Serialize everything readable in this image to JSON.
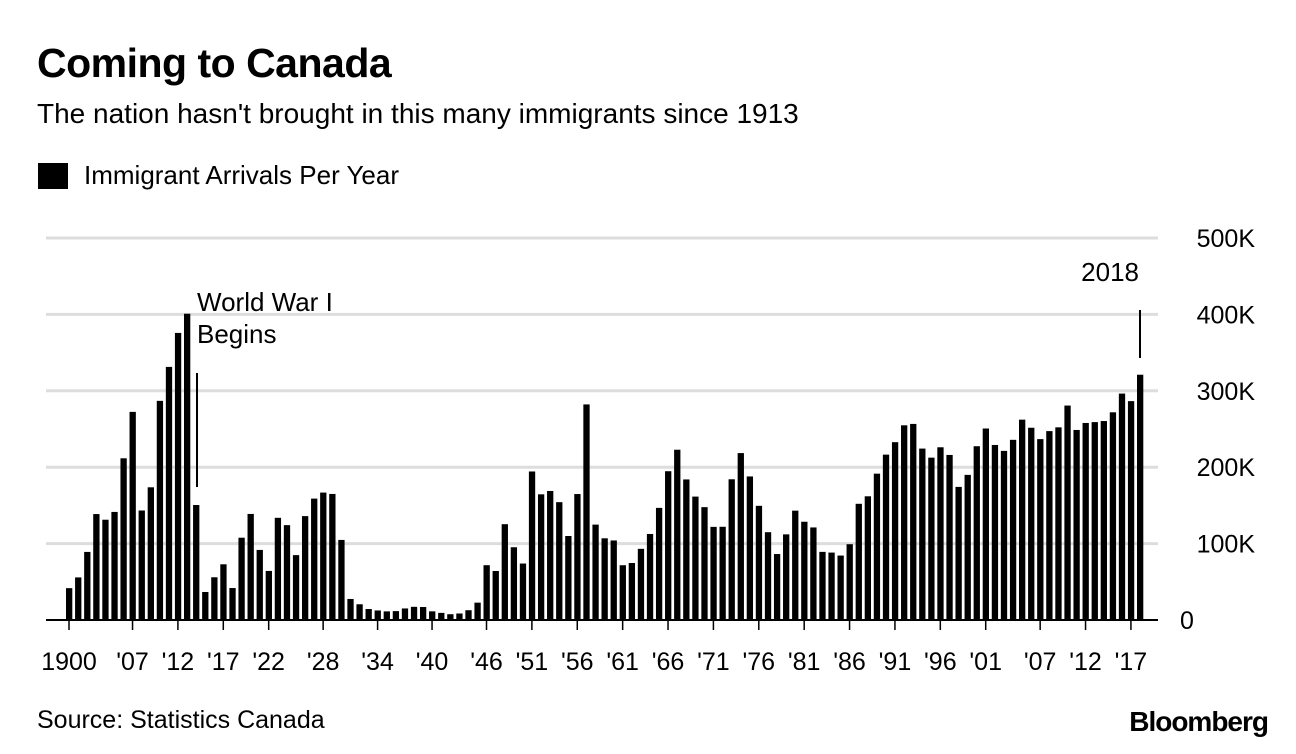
{
  "title": "Coming to Canada",
  "subtitle": "The nation hasn't brought in this many immigrants since 1913",
  "source": "Source: Statistics Canada",
  "logo": "Bloomberg",
  "chart_data": {
    "type": "bar",
    "legend": {
      "entries": [
        "Immigrant Arrivals Per Year"
      ],
      "placement": "top-left"
    },
    "color": "#000000",
    "grid": true,
    "grid_color": "#dddddd",
    "ylim": [
      0,
      500000
    ],
    "y_ticks": [
      {
        "value": 0,
        "label": "0"
      },
      {
        "value": 100000,
        "label": "100K"
      },
      {
        "value": 200000,
        "label": "200K"
      },
      {
        "value": 300000,
        "label": "300K"
      },
      {
        "value": 400000,
        "label": "400K"
      },
      {
        "value": 500000,
        "label": "500K"
      }
    ],
    "x_ticks": [
      {
        "year": 1900,
        "label": "1900"
      },
      {
        "year": 1907,
        "label": "'07"
      },
      {
        "year": 1912,
        "label": "'12"
      },
      {
        "year": 1917,
        "label": "'17"
      },
      {
        "year": 1922,
        "label": "'22"
      },
      {
        "year": 1928,
        "label": "'28"
      },
      {
        "year": 1934,
        "label": "'34"
      },
      {
        "year": 1940,
        "label": "'40"
      },
      {
        "year": 1946,
        "label": "'46"
      },
      {
        "year": 1951,
        "label": "'51"
      },
      {
        "year": 1956,
        "label": "'56"
      },
      {
        "year": 1961,
        "label": "'61"
      },
      {
        "year": 1966,
        "label": "'66"
      },
      {
        "year": 1971,
        "label": "'71"
      },
      {
        "year": 1976,
        "label": "'76"
      },
      {
        "year": 1981,
        "label": "'81"
      },
      {
        "year": 1986,
        "label": "'86"
      },
      {
        "year": 1991,
        "label": "'91"
      },
      {
        "year": 1996,
        "label": "'96"
      },
      {
        "year": 2001,
        "label": "'01"
      },
      {
        "year": 2007,
        "label": "'07"
      },
      {
        "year": 2012,
        "label": "'12"
      },
      {
        "year": 2017,
        "label": "'17"
      }
    ],
    "annotations": [
      {
        "year": 1914,
        "lines": [
          "World War I",
          "Begins"
        ]
      },
      {
        "year": 2018,
        "lines": [
          "2018"
        ]
      }
    ],
    "start_year": 1900,
    "values": [
      41681,
      55747,
      89102,
      138660,
      131252,
      141465,
      211653,
      272409,
      143326,
      173694,
      286839,
      331288,
      375756,
      400870,
      150484,
      36665,
      55914,
      72910,
      41845,
      107698,
      138824,
      91728,
      64224,
      133729,
      124164,
      84907,
      135982,
      158886,
      166783,
      164993,
      104806,
      27530,
      20591,
      14382,
      12476,
      11277,
      11643,
      15101,
      17244,
      16994,
      11324,
      9329,
      7576,
      8504,
      12801,
      22722,
      71719,
      64127,
      125414,
      95217,
      73912,
      194391,
      164498,
      168868,
      154227,
      109946,
      164857,
      282164,
      124851,
      106928,
      104111,
      71689,
      74586,
      93151,
      112606,
      146758,
      194743,
      222876,
      183974,
      161531,
      147713,
      121900,
      122006,
      184200,
      218465,
      187881,
      149429,
      114914,
      86313,
      112096,
      143117,
      128618,
      121147,
      89157,
      88239,
      84347,
      99219,
      152098,
      161929,
      191550,
      216452,
      232744,
      254817,
      256641,
      224364,
      212504,
      226073,
      216038,
      174200,
      189956,
      227458,
      250640,
      229091,
      221349,
      235824,
      262242,
      251640,
      236758,
      247243,
      252179,
      280681,
      248748,
      257903,
      259023,
      260404,
      271847,
      296346,
      286479,
      321035
    ]
  }
}
